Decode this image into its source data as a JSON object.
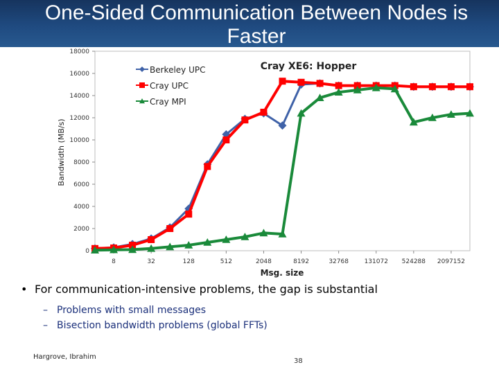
{
  "slide": {
    "title_lines": [
      "One-Sided Communication Between Nodes is",
      "Faster"
    ],
    "bullet": "For communication-intensive problems, the gap is substantial",
    "subbullets": [
      "Problems with small messages",
      "Bisection bandwidth problems (global FFTs)"
    ],
    "author": "Hargrove, Ibrahim",
    "page_number": "38"
  },
  "chart_data": {
    "type": "line",
    "title": "Cray XE6: Hopper",
    "xlabel": "Msg. size",
    "ylabel": "Bandwidth (MB/s)",
    "ylim": [
      0,
      18000
    ],
    "yticks": [
      "0",
      "2000",
      "4000",
      "6000",
      "8000",
      "10000",
      "12000",
      "14000",
      "16000",
      "18000"
    ],
    "x_scale": "log2",
    "x": [
      4,
      8,
      16,
      32,
      64,
      128,
      256,
      512,
      1024,
      2048,
      4096,
      8192,
      16384,
      32768,
      65536,
      131072,
      262144,
      524288,
      1048576,
      2097152,
      4194304
    ],
    "xtick_labels": [
      "8",
      "32",
      "128",
      "512",
      "2048",
      "8192",
      "32768",
      "131072",
      "524288",
      "2097152"
    ],
    "legend_position": "top-left",
    "series": [
      {
        "name": "Berkeley UPC",
        "color": "#3f62a8",
        "marker": "diamond",
        "values": [
          200,
          300,
          600,
          1100,
          2100,
          3800,
          7800,
          10500,
          11900,
          12400,
          11300,
          15000,
          15100,
          14900,
          14900,
          14900,
          14900,
          14800,
          14800,
          14800,
          14800
        ]
      },
      {
        "name": "Cray UPC",
        "color": "#ff0000",
        "marker": "square",
        "values": [
          200,
          250,
          500,
          1000,
          2000,
          3300,
          7600,
          10000,
          11800,
          12500,
          15300,
          15200,
          15100,
          14900,
          14900,
          14900,
          14900,
          14800,
          14800,
          14800,
          14800
        ]
      },
      {
        "name": "Cray MPI",
        "color": "#1a8a3a",
        "marker": "triangle",
        "values": [
          50,
          80,
          100,
          200,
          350,
          500,
          750,
          1000,
          1250,
          1600,
          1500,
          12400,
          13800,
          14300,
          14500,
          14700,
          14600,
          11600,
          12000,
          12300,
          12400
        ]
      }
    ]
  }
}
